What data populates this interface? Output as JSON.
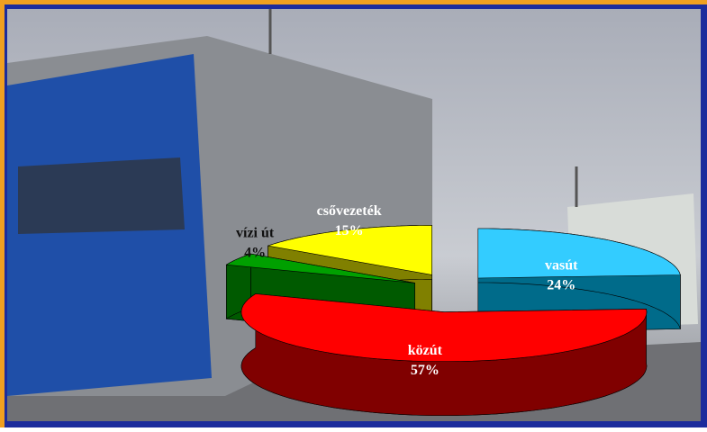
{
  "chart_data": {
    "type": "pie3d",
    "categories": [
      "vasút",
      "közút",
      "vízi út",
      "csővezeték"
    ],
    "values": [
      24,
      57,
      4,
      15
    ],
    "value_labels": [
      "24%",
      "57%",
      "4%",
      "15%"
    ],
    "colors": [
      "#33ccff",
      "#ff0000",
      "#00a000",
      "#ffff00"
    ],
    "side_colors": [
      "#006b8a",
      "#800000",
      "#005a00",
      "#808000"
    ]
  }
}
